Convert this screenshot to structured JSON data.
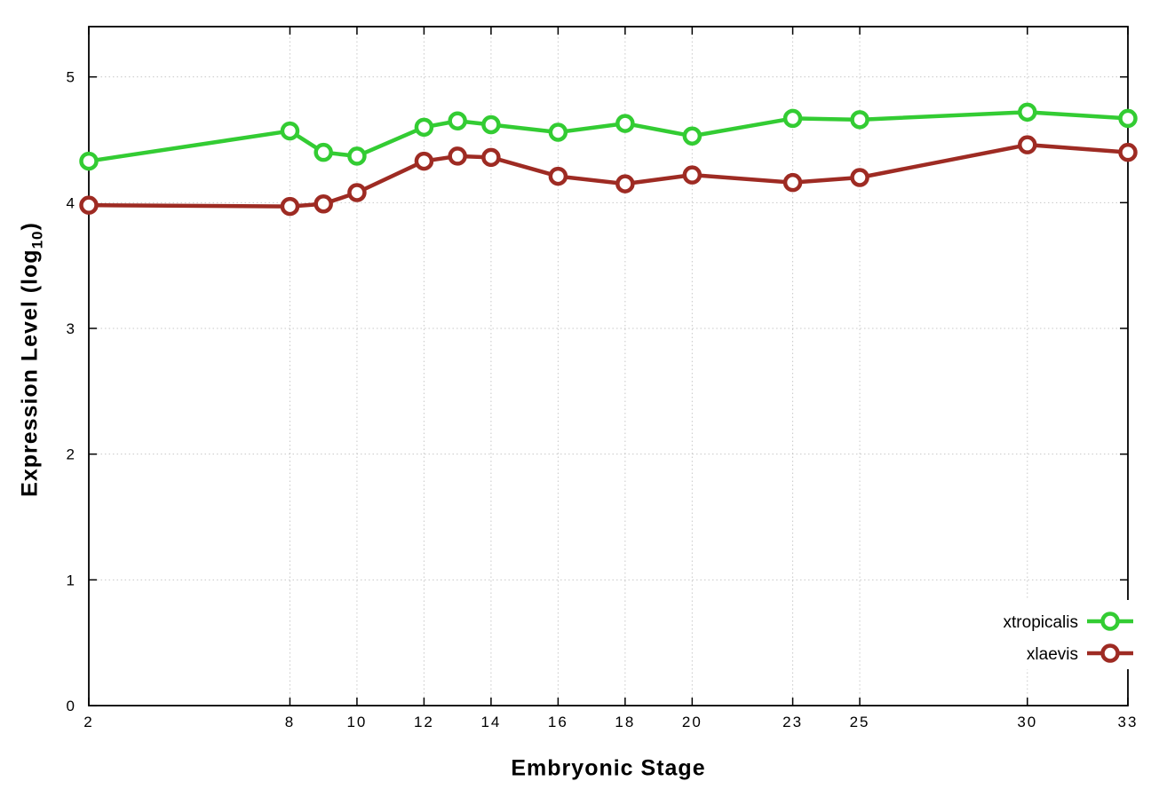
{
  "chart_data": {
    "type": "line",
    "title": "",
    "xlabel": "Embryonic Stage",
    "ylabel": "Expression Level (log10)",
    "ylabel_main": "Expression Level (log",
    "ylabel_sub": "10",
    "ylabel_close": ")",
    "x": [
      2,
      8,
      9,
      10,
      12,
      13,
      14,
      16,
      18,
      20,
      23,
      25,
      30,
      33
    ],
    "xticks": [
      2,
      8,
      10,
      12,
      14,
      16,
      18,
      20,
      23,
      25,
      30,
      33
    ],
    "yticks": [
      0,
      1,
      2,
      3,
      4,
      5
    ],
    "xlim": [
      2,
      33
    ],
    "ylim": [
      0,
      5.4
    ],
    "grid": true,
    "grid_color": "#c8c8c8",
    "legend_position": "inside-bottom-right",
    "series": [
      {
        "name": "xtropicalis",
        "color": "#33cc33",
        "values": [
          4.33,
          4.57,
          4.4,
          4.37,
          4.6,
          4.65,
          4.62,
          4.56,
          4.63,
          4.53,
          4.67,
          4.66,
          4.72,
          4.67
        ]
      },
      {
        "name": "xlaevis",
        "color": "#9e2b23",
        "values": [
          3.98,
          3.97,
          3.99,
          4.08,
          4.33,
          4.37,
          4.36,
          4.21,
          4.15,
          4.22,
          4.16,
          4.2,
          4.46,
          4.4
        ]
      }
    ]
  }
}
